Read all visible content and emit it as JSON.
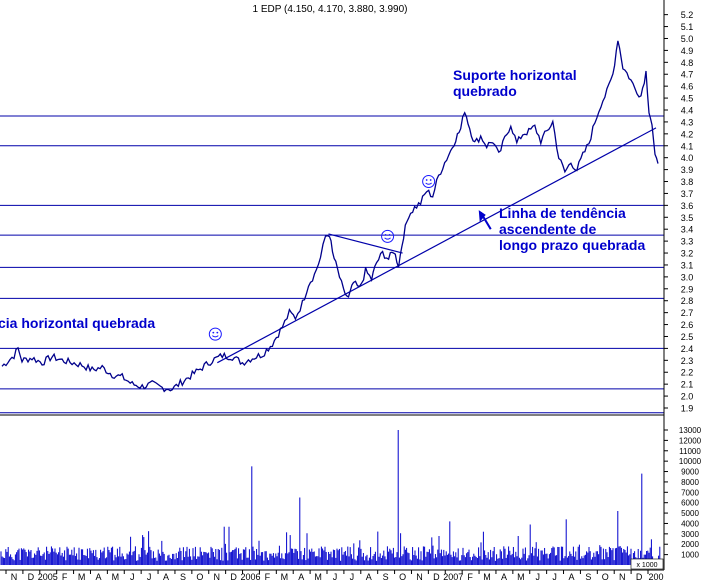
{
  "chart_data": [
    {
      "type": "line",
      "title": "1 EDP (4.150, 4.170, 3.880, 3.990)",
      "ylim": [
        1.85,
        5.25
      ],
      "y_ticks": [
        1.9,
        2.0,
        2.1,
        2.2,
        2.3,
        2.4,
        2.5,
        2.6,
        2.7,
        2.8,
        2.9,
        3.0,
        3.1,
        3.2,
        3.3,
        3.4,
        3.5,
        3.6,
        3.7,
        3.8,
        3.9,
        4.0,
        4.1,
        4.2,
        4.3,
        4.4,
        4.5,
        4.6,
        4.7,
        4.8,
        4.9,
        5.0,
        5.1,
        5.2
      ],
      "x_ticks": [
        "N",
        "D",
        "2005",
        "F",
        "M",
        "A",
        "M",
        "J",
        "J",
        "A",
        "S",
        "O",
        "N",
        "D",
        "2006",
        "F",
        "M",
        "A",
        "M",
        "J",
        "J",
        "A",
        "S",
        "O",
        "N",
        "D",
        "2007",
        "F",
        "M",
        "A",
        "M",
        "J",
        "J",
        "A",
        "S",
        "O",
        "N",
        "D",
        "200"
      ],
      "horizontal_levels": [
        4.35,
        4.1,
        3.6,
        3.35,
        3.08,
        2.82,
        2.4,
        2.06,
        1.86
      ],
      "price_points": [
        [
          0,
          2.25
        ],
        [
          1.2,
          2.34
        ],
        [
          1.6,
          2.4
        ],
        [
          2,
          2.3
        ],
        [
          3,
          2.32
        ],
        [
          4,
          2.28
        ],
        [
          5,
          2.33
        ],
        [
          6,
          2.3
        ],
        [
          7,
          2.28
        ],
        [
          8,
          2.26
        ],
        [
          9,
          2.22
        ],
        [
          10,
          2.24
        ],
        [
          11,
          2.18
        ],
        [
          12,
          2.16
        ],
        [
          13,
          2.1
        ],
        [
          14,
          2.08
        ],
        [
          15,
          2.1
        ],
        [
          16,
          2.07
        ],
        [
          17,
          2.06
        ],
        [
          18,
          2.12
        ],
        [
          19,
          2.18
        ],
        [
          20,
          2.24
        ],
        [
          21,
          2.3
        ],
        [
          22,
          2.34
        ],
        [
          23,
          2.33
        ],
        [
          24,
          2.28
        ],
        [
          25,
          2.32
        ],
        [
          26,
          2.35
        ],
        [
          27,
          2.44
        ],
        [
          28,
          2.58
        ],
        [
          28.7,
          2.7
        ],
        [
          29.3,
          2.66
        ],
        [
          30,
          2.78
        ],
        [
          30.6,
          2.94
        ],
        [
          31.2,
          3.02
        ],
        [
          31.8,
          3.16
        ],
        [
          32.3,
          3.34
        ],
        [
          32.7,
          3.36
        ],
        [
          33,
          3.2
        ],
        [
          33.5,
          3.06
        ],
        [
          34.1,
          2.88
        ],
        [
          34.6,
          2.82
        ],
        [
          35.1,
          2.95
        ],
        [
          35.7,
          2.9
        ],
        [
          36.3,
          3.05
        ],
        [
          36.9,
          2.98
        ],
        [
          37.4,
          3.12
        ],
        [
          38,
          3.2
        ],
        [
          38.6,
          3.15
        ],
        [
          39.1,
          3.22
        ],
        [
          39.6,
          3.1
        ],
        [
          40.1,
          3.35
        ],
        [
          40.6,
          3.52
        ],
        [
          41.2,
          3.58
        ],
        [
          41.8,
          3.62
        ],
        [
          42.4,
          3.72
        ],
        [
          43,
          3.68
        ],
        [
          43.6,
          3.85
        ],
        [
          44.2,
          3.96
        ],
        [
          44.8,
          4.06
        ],
        [
          45.3,
          4.16
        ],
        [
          45.8,
          4.24
        ],
        [
          46.2,
          4.4
        ],
        [
          46.7,
          4.25
        ],
        [
          47.2,
          4.12
        ],
        [
          47.8,
          4.18
        ],
        [
          48.4,
          4.1
        ],
        [
          49,
          4.14
        ],
        [
          49.6,
          4.02
        ],
        [
          50.2,
          4.16
        ],
        [
          50.8,
          4.28
        ],
        [
          51.4,
          4.12
        ],
        [
          52,
          4.2
        ],
        [
          52.6,
          4.22
        ],
        [
          53.2,
          4.26
        ],
        [
          53.8,
          4.14
        ],
        [
          54.4,
          4.22
        ],
        [
          55,
          4.3
        ],
        [
          55.6,
          4.0
        ],
        [
          56.2,
          3.88
        ],
        [
          56.8,
          3.96
        ],
        [
          57.4,
          3.9
        ],
        [
          58,
          4.02
        ],
        [
          58.6,
          4.12
        ],
        [
          59.2,
          4.3
        ],
        [
          59.8,
          4.45
        ],
        [
          60.4,
          4.55
        ],
        [
          61,
          4.7
        ],
        [
          61.5,
          5.0
        ],
        [
          62,
          4.76
        ],
        [
          62.6,
          4.68
        ],
        [
          63.2,
          4.58
        ],
        [
          63.8,
          4.52
        ],
        [
          64.3,
          4.72
        ],
        [
          64.6,
          4.4
        ],
        [
          64.9,
          4.28
        ],
        [
          65.2,
          4.0
        ],
        [
          65.5,
          3.95
        ]
      ],
      "volume_ticks": [
        "13000",
        "12000",
        "11000",
        "10000",
        "9000",
        "8000",
        "7000",
        "6000",
        "5000",
        "4000",
        "3000",
        "2000",
        "1000"
      ],
      "volume_unit": "1000",
      "annotations": [
        {
          "text": "Suporte horizontal"
        },
        {
          "text": "quebrado"
        },
        {
          "text": "Linha de tendência"
        },
        {
          "text": "ascendente de"
        },
        {
          "text": "longo prazo quebrada"
        },
        {
          "text": "cia horizontal quebrada"
        }
      ],
      "smileys": 3
    }
  ]
}
